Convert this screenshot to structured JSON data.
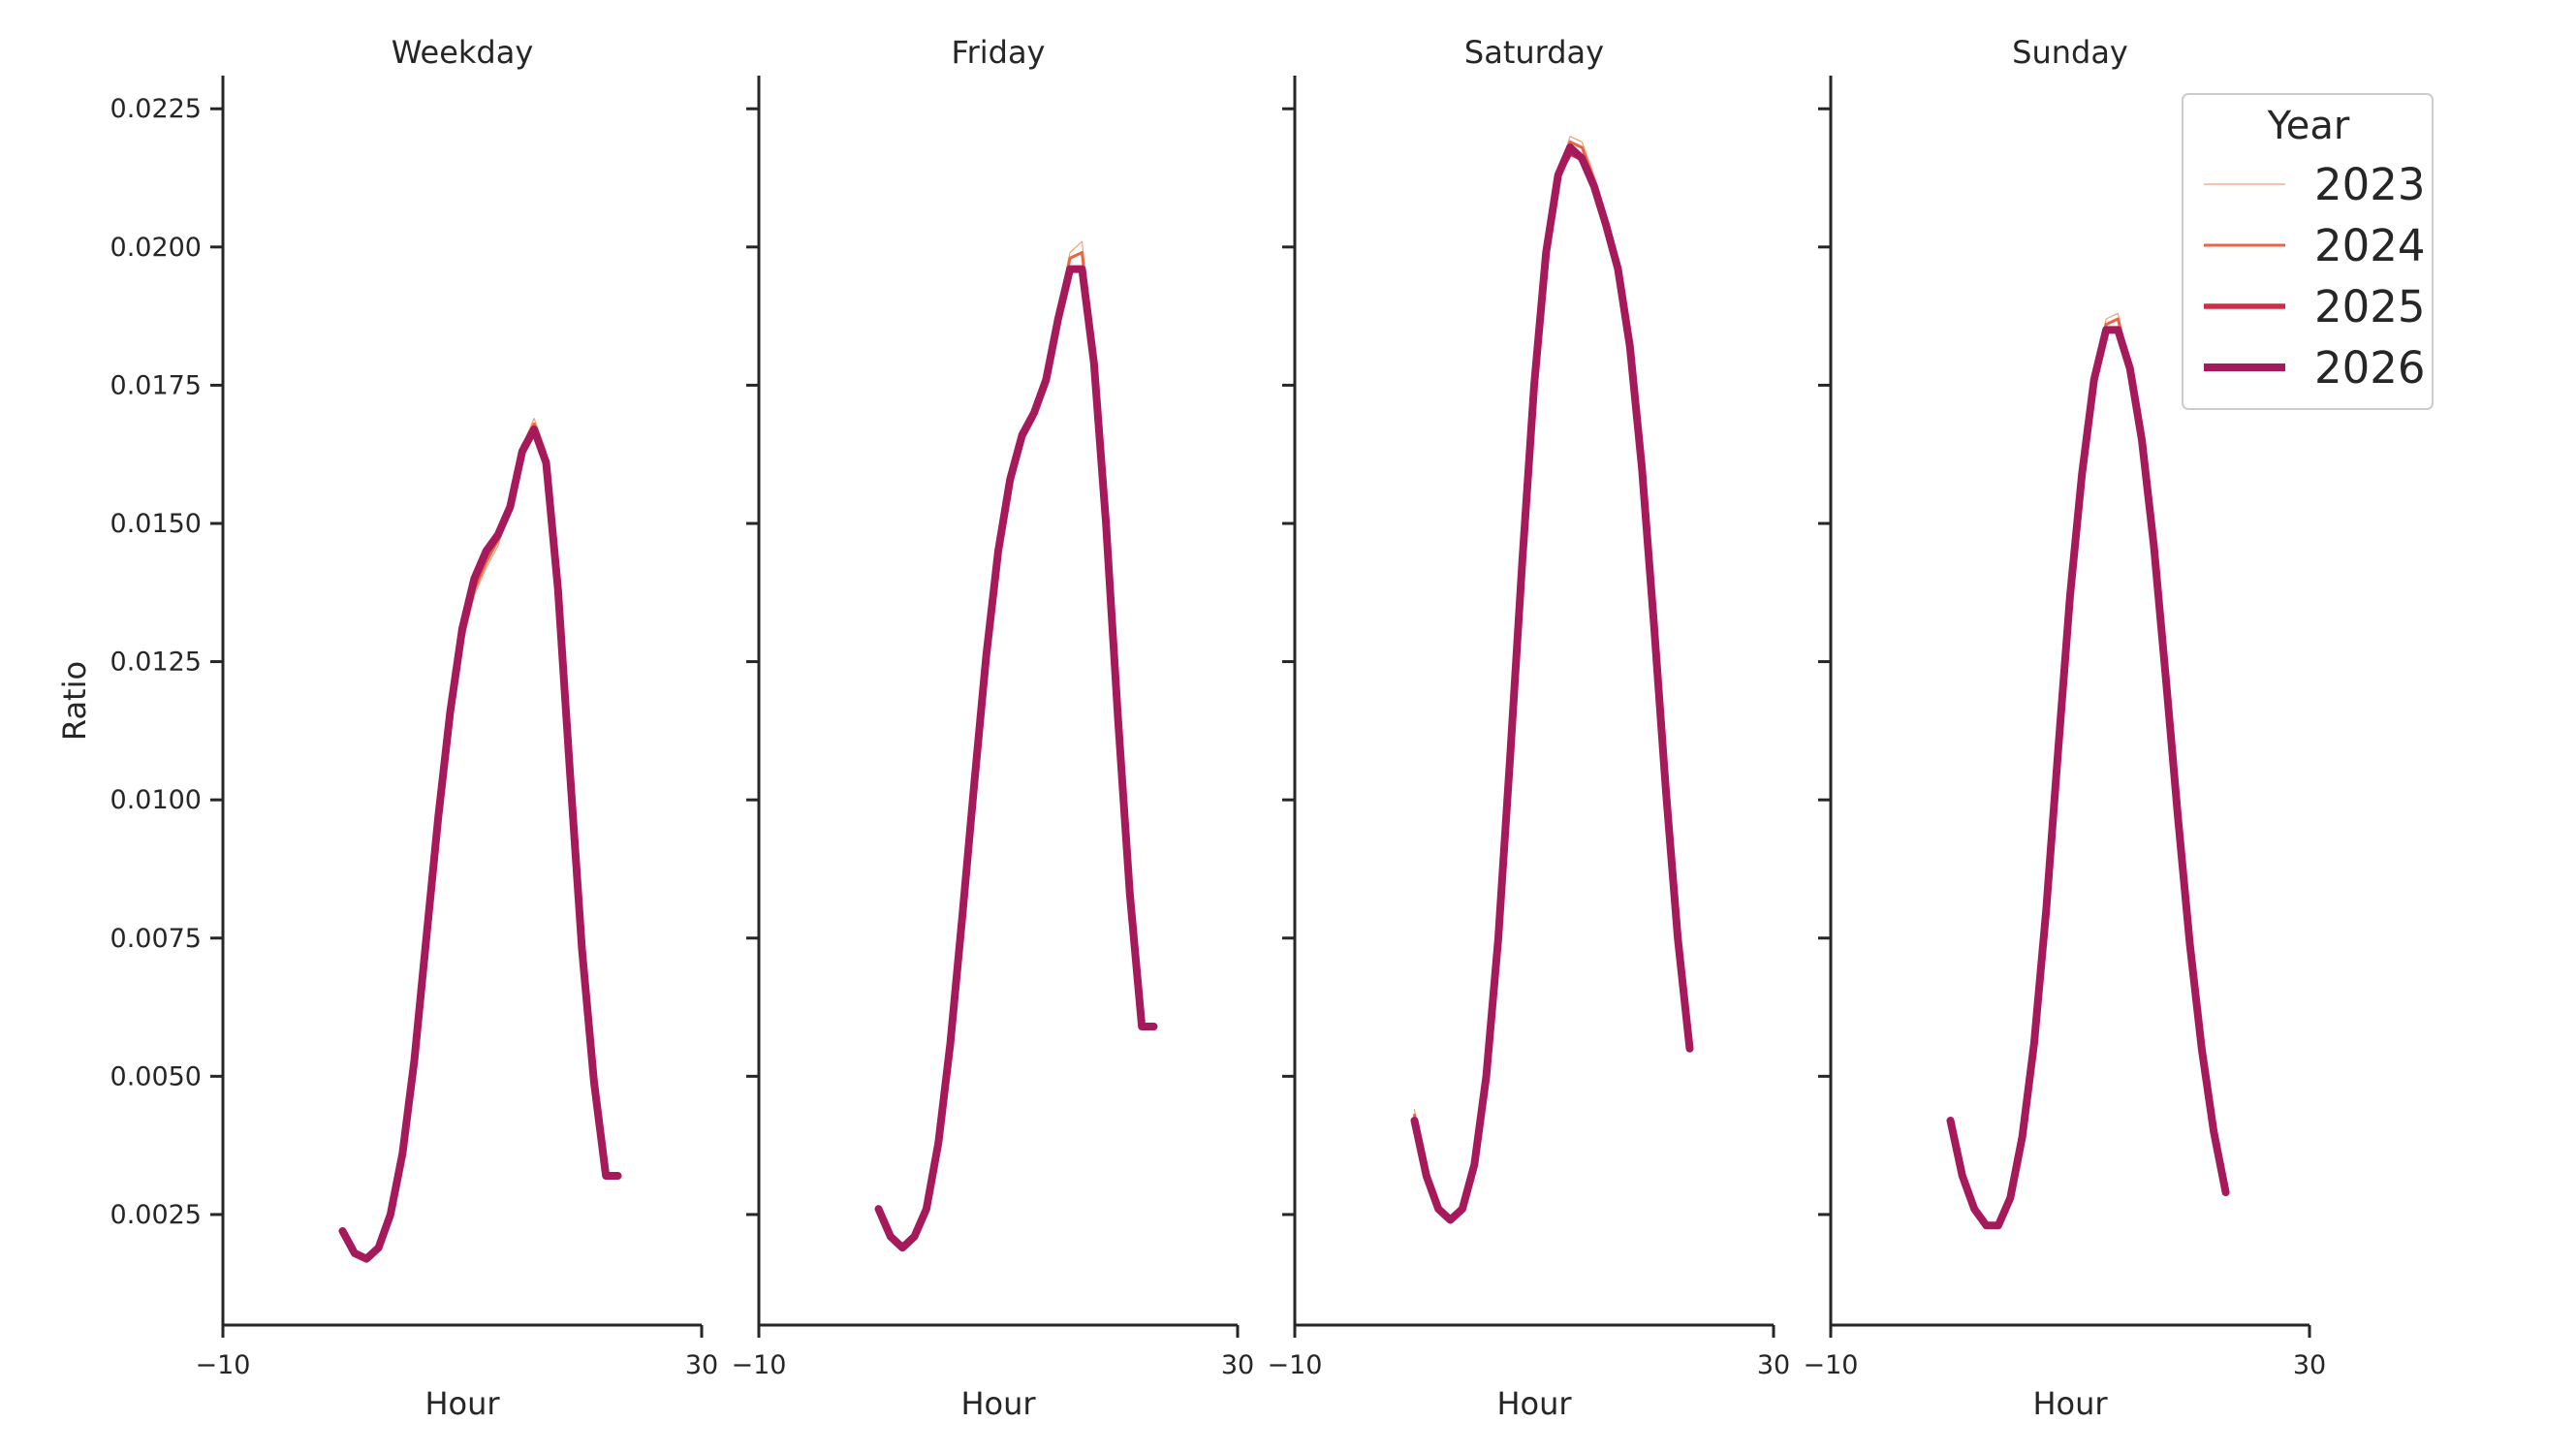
{
  "chart_data": {
    "type": "line",
    "ylabel": "Ratio",
    "xlabel": "Hour",
    "xlim": [
      -10,
      30
    ],
    "ylim": [
      0.0005,
      0.0231
    ],
    "xticks": [
      -10,
      30
    ],
    "xtick_labels": [
      "−10",
      "30"
    ],
    "yticks": [
      0.0025,
      0.005,
      0.0075,
      0.01,
      0.0125,
      0.015,
      0.0175,
      0.02,
      0.0225
    ],
    "ytick_labels": [
      "0.0025",
      "0.0050",
      "0.0075",
      "0.0100",
      "0.0125",
      "0.0150",
      "0.0175",
      "0.0200",
      "0.0225"
    ],
    "legend": {
      "title": "Year",
      "position": "top-right",
      "entries": [
        {
          "label": "2023",
          "color": "#f3a075",
          "width": 1.2
        },
        {
          "label": "2024",
          "color": "#ea6543",
          "width": 3.0
        },
        {
          "label": "2025",
          "color": "#cf2e45",
          "width": 5.5
        },
        {
          "label": "2026",
          "color": "#a6195a",
          "width": 8.0
        }
      ]
    },
    "x": [
      0,
      1,
      2,
      3,
      4,
      5,
      6,
      7,
      8,
      9,
      10,
      11,
      12,
      13,
      14,
      15,
      16,
      17,
      18,
      19,
      20,
      21,
      22,
      23
    ],
    "panels": [
      {
        "title": "Weekday",
        "series": [
          {
            "name": "2023",
            "values": [
              0.0022,
              0.0018,
              0.0017,
              0.0019,
              0.0025,
              0.0037,
              0.0053,
              0.0075,
              0.0097,
              0.0115,
              0.0128,
              0.0137,
              0.0142,
              0.0146,
              0.0153,
              0.0164,
              0.0169,
              0.0163,
              0.0138,
              0.0105,
              0.0073,
              0.0049,
              0.0032,
              0.0032
            ]
          },
          {
            "name": "2024",
            "values": [
              0.0022,
              0.0018,
              0.0017,
              0.0019,
              0.0025,
              0.0037,
              0.0053,
              0.0075,
              0.0097,
              0.0115,
              0.0129,
              0.0138,
              0.0143,
              0.0147,
              0.0153,
              0.0164,
              0.0168,
              0.0162,
              0.0138,
              0.0105,
              0.0073,
              0.0049,
              0.0032,
              0.0032
            ]
          },
          {
            "name": "2025",
            "values": [
              0.0022,
              0.0018,
              0.0017,
              0.0019,
              0.0025,
              0.0036,
              0.0053,
              0.0075,
              0.0097,
              0.0116,
              0.013,
              0.014,
              0.0145,
              0.0148,
              0.0153,
              0.0163,
              0.0167,
              0.0161,
              0.0138,
              0.0105,
              0.0073,
              0.0049,
              0.0032,
              0.0032
            ]
          },
          {
            "name": "2026",
            "values": [
              0.0022,
              0.0018,
              0.0017,
              0.0019,
              0.0025,
              0.0036,
              0.0053,
              0.0075,
              0.0097,
              0.0116,
              0.0131,
              0.014,
              0.0145,
              0.0148,
              0.0153,
              0.0163,
              0.0167,
              0.0161,
              0.0138,
              0.0105,
              0.0073,
              0.0049,
              0.0032,
              0.0032
            ]
          }
        ]
      },
      {
        "title": "Friday",
        "series": [
          {
            "name": "2023",
            "values": [
              0.0026,
              0.0021,
              0.0019,
              0.0021,
              0.0026,
              0.0038,
              0.0056,
              0.0079,
              0.0103,
              0.0126,
              0.0144,
              0.0157,
              0.0165,
              0.0169,
              0.0176,
              0.0189,
              0.0199,
              0.0201,
              0.018,
              0.015,
              0.0115,
              0.0083,
              0.0059,
              0.0059
            ]
          },
          {
            "name": "2024",
            "values": [
              0.0026,
              0.0021,
              0.0019,
              0.0021,
              0.0026,
              0.0038,
              0.0056,
              0.0079,
              0.0103,
              0.0126,
              0.0144,
              0.0157,
              0.0165,
              0.0169,
              0.0176,
              0.0188,
              0.0198,
              0.0199,
              0.0179,
              0.015,
              0.0115,
              0.0083,
              0.0059,
              0.0059
            ]
          },
          {
            "name": "2025",
            "values": [
              0.0026,
              0.0021,
              0.0019,
              0.0021,
              0.0026,
              0.0038,
              0.0056,
              0.0079,
              0.0103,
              0.0126,
              0.0145,
              0.0158,
              0.0166,
              0.017,
              0.0176,
              0.0187,
              0.0196,
              0.0196,
              0.0179,
              0.015,
              0.0115,
              0.0083,
              0.0059,
              0.0059
            ]
          },
          {
            "name": "2026",
            "values": [
              0.0026,
              0.0021,
              0.0019,
              0.0021,
              0.0026,
              0.0038,
              0.0056,
              0.0079,
              0.0103,
              0.0126,
              0.0145,
              0.0158,
              0.0166,
              0.017,
              0.0176,
              0.0187,
              0.0196,
              0.0196,
              0.0179,
              0.015,
              0.0115,
              0.0083,
              0.0059,
              0.0059
            ]
          }
        ]
      },
      {
        "title": "Saturday",
        "series": [
          {
            "name": "2023",
            "values": [
              0.0044,
              0.0032,
              0.0026,
              0.0024,
              0.0026,
              0.0034,
              0.005,
              0.0075,
              0.0108,
              0.0143,
              0.0175,
              0.0199,
              0.0213,
              0.022,
              0.0219,
              0.0213,
              0.0206,
              0.0196,
              0.0182,
              0.016,
              0.0132,
              0.0102,
              0.0075,
              0.0055
            ]
          },
          {
            "name": "2024",
            "values": [
              0.0043,
              0.0032,
              0.0026,
              0.0024,
              0.0026,
              0.0034,
              0.005,
              0.0075,
              0.0108,
              0.0143,
              0.0175,
              0.0199,
              0.0213,
              0.0219,
              0.0218,
              0.0212,
              0.0205,
              0.0196,
              0.0182,
              0.016,
              0.0132,
              0.0102,
              0.0075,
              0.0055
            ]
          },
          {
            "name": "2025",
            "values": [
              0.0042,
              0.0032,
              0.0026,
              0.0024,
              0.0026,
              0.0034,
              0.005,
              0.0075,
              0.0108,
              0.0143,
              0.0175,
              0.0199,
              0.0213,
              0.0217,
              0.0216,
              0.0211,
              0.0204,
              0.0196,
              0.0182,
              0.016,
              0.0132,
              0.0102,
              0.0075,
              0.0055
            ]
          },
          {
            "name": "2026",
            "values": [
              0.0042,
              0.0032,
              0.0026,
              0.0024,
              0.0026,
              0.0034,
              0.005,
              0.0075,
              0.0108,
              0.0143,
              0.0175,
              0.0199,
              0.0213,
              0.0218,
              0.0216,
              0.0211,
              0.0204,
              0.0196,
              0.0182,
              0.016,
              0.0132,
              0.0102,
              0.0075,
              0.0055
            ]
          }
        ]
      },
      {
        "title": "Sunday",
        "series": [
          {
            "name": "2023",
            "values": [
              0.0042,
              0.0032,
              0.0026,
              0.0023,
              0.0023,
              0.0028,
              0.0039,
              0.0056,
              0.008,
              0.0109,
              0.0137,
              0.0161,
              0.0176,
              0.0187,
              0.0188,
              0.0178,
              0.0165,
              0.0146,
              0.0122,
              0.0097,
              0.0074,
              0.0055,
              0.004,
              0.0029
            ]
          },
          {
            "name": "2024",
            "values": [
              0.0042,
              0.0032,
              0.0026,
              0.0023,
              0.0023,
              0.0028,
              0.0039,
              0.0056,
              0.008,
              0.0109,
              0.0137,
              0.016,
              0.0176,
              0.0186,
              0.0187,
              0.0178,
              0.0165,
              0.0146,
              0.0122,
              0.0097,
              0.0074,
              0.0055,
              0.004,
              0.0029
            ]
          },
          {
            "name": "2025",
            "values": [
              0.0042,
              0.0032,
              0.0026,
              0.0023,
              0.0023,
              0.0028,
              0.0039,
              0.0056,
              0.008,
              0.0109,
              0.0137,
              0.0159,
              0.0176,
              0.0185,
              0.0185,
              0.0178,
              0.0165,
              0.0146,
              0.0122,
              0.0097,
              0.0074,
              0.0055,
              0.004,
              0.0029
            ]
          },
          {
            "name": "2026",
            "values": [
              0.0042,
              0.0032,
              0.0026,
              0.0023,
              0.0023,
              0.0028,
              0.0039,
              0.0056,
              0.008,
              0.0109,
              0.0137,
              0.0159,
              0.0176,
              0.0185,
              0.0185,
              0.0178,
              0.0165,
              0.0146,
              0.0122,
              0.0097,
              0.0074,
              0.0055,
              0.004,
              0.0029
            ]
          }
        ]
      }
    ]
  }
}
